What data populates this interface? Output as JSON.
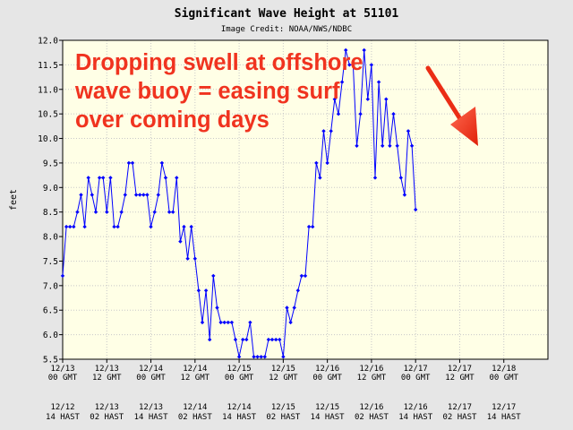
{
  "chart_data": {
    "type": "line",
    "title": "Significant Wave Height at 51101",
    "subtitle": "Image Credit: NOAA/NWS/NDBC",
    "ylabel": "feet",
    "ylim": [
      5.5,
      12.0
    ],
    "yticks": [
      "5.5",
      "6.0",
      "6.5",
      "7.0",
      "7.5",
      "8.0",
      "8.5",
      "9.0",
      "9.5",
      "10.0",
      "10.5",
      "11.0",
      "11.5",
      "12.0"
    ],
    "xlim": [
      0,
      132
    ],
    "grid": true,
    "xticks": [
      {
        "t": 0,
        "gmt1": "12/13",
        "gmt2": "00 GMT",
        "hast1": "12/12",
        "hast2": "14 HAST"
      },
      {
        "t": 12,
        "gmt1": "12/13",
        "gmt2": "12 GMT",
        "hast1": "12/13",
        "hast2": "02 HAST"
      },
      {
        "t": 24,
        "gmt1": "12/14",
        "gmt2": "00 GMT",
        "hast1": "12/13",
        "hast2": "14 HAST"
      },
      {
        "t": 36,
        "gmt1": "12/14",
        "gmt2": "12 GMT",
        "hast1": "12/14",
        "hast2": "02 HAST"
      },
      {
        "t": 48,
        "gmt1": "12/15",
        "gmt2": "00 GMT",
        "hast1": "12/14",
        "hast2": "14 HAST"
      },
      {
        "t": 60,
        "gmt1": "12/15",
        "gmt2": "12 GMT",
        "hast1": "12/15",
        "hast2": "02 HAST"
      },
      {
        "t": 72,
        "gmt1": "12/16",
        "gmt2": "00 GMT",
        "hast1": "12/15",
        "hast2": "14 HAST"
      },
      {
        "t": 84,
        "gmt1": "12/16",
        "gmt2": "12 GMT",
        "hast1": "12/16",
        "hast2": "02 HAST"
      },
      {
        "t": 96,
        "gmt1": "12/17",
        "gmt2": "00 GMT",
        "hast1": "12/16",
        "hast2": "14 HAST"
      },
      {
        "t": 108,
        "gmt1": "12/17",
        "gmt2": "12 GMT",
        "hast1": "12/17",
        "hast2": "02 HAST"
      },
      {
        "t": 120,
        "gmt1": "12/18",
        "gmt2": "00 GMT",
        "hast1": "12/17",
        "hast2": "14 HAST"
      }
    ],
    "series": [
      {
        "color": "#0000ff",
        "x": [
          0,
          1,
          2,
          3,
          4,
          5,
          6,
          7,
          8,
          9,
          10,
          11,
          12,
          13,
          14,
          15,
          16,
          17,
          18,
          19,
          20,
          21,
          22,
          23,
          24,
          25,
          26,
          27,
          28,
          29,
          30,
          31,
          32,
          33,
          34,
          35,
          36,
          37,
          38,
          39,
          40,
          41,
          42,
          43,
          44,
          45,
          46,
          47,
          48,
          49,
          50,
          51,
          52,
          53,
          54,
          55,
          56,
          57,
          58,
          59,
          60,
          61,
          62,
          63,
          64,
          65,
          66,
          67,
          68,
          69,
          70,
          71,
          72,
          73,
          74,
          75,
          76,
          77,
          78,
          79,
          80,
          81,
          82,
          83,
          84,
          85,
          86,
          87,
          88,
          89,
          90,
          91,
          92,
          93,
          94,
          95,
          96,
          97
        ],
        "y": [
          7.2,
          8.2,
          8.2,
          8.2,
          8.5,
          8.85,
          8.2,
          9.2,
          8.85,
          8.5,
          9.2,
          9.2,
          8.5,
          9.2,
          8.2,
          8.2,
          8.5,
          8.85,
          9.5,
          9.5,
          8.85,
          8.85,
          8.85,
          8.85,
          8.2,
          8.5,
          8.85,
          9.5,
          9.2,
          8.5,
          8.5,
          9.2,
          7.9,
          8.2,
          7.55,
          8.2,
          7.55,
          6.9,
          6.25,
          6.9,
          5.9,
          7.2,
          6.55,
          6.25,
          6.25,
          6.25,
          6.25,
          5.9,
          5.55,
          5.9,
          5.9,
          6.25,
          5.55,
          5.55,
          5.55,
          5.55,
          5.9,
          5.9,
          5.9,
          5.9,
          5.55,
          6.55,
          6.25,
          6.55,
          6.9,
          7.2,
          7.2,
          8.2,
          8.2,
          9.5,
          9.2,
          10.15,
          9.5,
          10.15,
          10.8,
          10.5,
          11.15,
          11.8,
          11.5,
          11.5,
          9.85,
          10.5,
          11.8,
          10.8,
          11.5,
          9.2,
          11.15,
          9.85,
          10.8,
          9.85,
          10.5,
          9.85,
          9.2,
          8.85,
          10.15,
          9.85,
          8.55,
          null
        ]
      }
    ],
    "annotation": {
      "lines": [
        "Dropping swell at offshore",
        "wave buoy = easing surf",
        "over coming days"
      ],
      "color": "#f0331f"
    }
  }
}
